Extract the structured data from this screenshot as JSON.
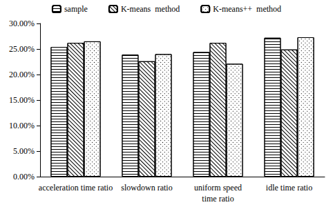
{
  "chart_data": {
    "type": "bar",
    "categories": [
      "acceleration time ratio",
      "slowdown ratio",
      "uniform speed\ntime ratio",
      "idle time ratio"
    ],
    "series": [
      {
        "name": "sample",
        "color": "#ffffff",
        "values": [
          25.4,
          23.9,
          24.4,
          27.2
        ]
      },
      {
        "name": "K-means  method",
        "color": "#ffffff",
        "values": [
          26.2,
          22.6,
          26.2,
          24.9
        ]
      },
      {
        "name": "K-means++  method",
        "color": "#ffffff",
        "values": [
          26.5,
          24.0,
          22.1,
          27.3
        ]
      }
    ],
    "ylim": [
      0,
      30
    ],
    "yticks": [
      {
        "value": 0,
        "label": "0.00%"
      },
      {
        "value": 5,
        "label": "5.00%"
      },
      {
        "value": 10,
        "label": "10.00%"
      },
      {
        "value": 15,
        "label": "15.00%"
      },
      {
        "value": 20,
        "label": "20.00%"
      },
      {
        "value": 25,
        "label": "25.00%"
      },
      {
        "value": 30,
        "label": "30.00%"
      }
    ],
    "grid": false,
    "legend": "top"
  }
}
